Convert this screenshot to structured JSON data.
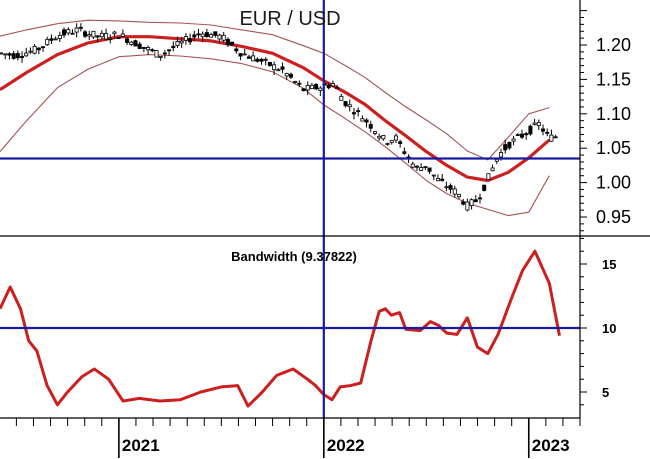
{
  "chart_data": [
    {
      "type": "candlestick",
      "title": "EUR / USD",
      "y_axis": {
        "ticks": [
          "1.20",
          "1.15",
          "1.10",
          "1.05",
          "1.00",
          "0.95"
        ],
        "range": [
          0.93,
          1.26
        ]
      },
      "x_axis": {
        "labels": [
          "2021",
          "2022",
          "2023"
        ],
        "range": [
          2020.42,
          2023.25
        ]
      },
      "reference_lines": {
        "horizontal": 1.035,
        "vertical_x": 2022.0
      },
      "series": [
        {
          "name": "",
          "kind": "moving-average",
          "points": [
            [
              2020.42,
              1.135
            ],
            [
              2020.55,
              1.16
            ],
            [
              2020.7,
              1.186
            ],
            [
              2020.85,
              1.203
            ],
            [
              2021.0,
              1.212
            ],
            [
              2021.15,
              1.212
            ],
            [
              2021.3,
              1.209
            ],
            [
              2021.45,
              1.206
            ],
            [
              2021.6,
              1.198
            ],
            [
              2021.75,
              1.188
            ],
            [
              2021.9,
              1.167
            ],
            [
              2022.0,
              1.148
            ],
            [
              2022.1,
              1.132
            ],
            [
              2022.2,
              1.114
            ],
            [
              2022.3,
              1.09
            ],
            [
              2022.4,
              1.068
            ],
            [
              2022.5,
              1.045
            ],
            [
              2022.6,
              1.025
            ],
            [
              2022.7,
              1.008
            ],
            [
              2022.8,
              1.003
            ],
            [
              2022.9,
              1.015
            ],
            [
              2023.0,
              1.036
            ],
            [
              2023.1,
              1.062
            ]
          ]
        },
        {
          "name": "",
          "kind": "upper-band",
          "points": [
            [
              2020.42,
              1.213
            ],
            [
              2020.55,
              1.222
            ],
            [
              2020.7,
              1.231
            ],
            [
              2020.85,
              1.236
            ],
            [
              2021.0,
              1.235
            ],
            [
              2021.15,
              1.233
            ],
            [
              2021.3,
              1.232
            ],
            [
              2021.45,
              1.229
            ],
            [
              2021.6,
              1.222
            ],
            [
              2021.75,
              1.215
            ],
            [
              2021.9,
              1.199
            ],
            [
              2022.0,
              1.188
            ],
            [
              2022.1,
              1.171
            ],
            [
              2022.2,
              1.153
            ],
            [
              2022.3,
              1.131
            ],
            [
              2022.4,
              1.11
            ],
            [
              2022.5,
              1.091
            ],
            [
              2022.6,
              1.071
            ],
            [
              2022.7,
              1.046
            ],
            [
              2022.8,
              1.033
            ],
            [
              2022.9,
              1.066
            ],
            [
              2023.0,
              1.1
            ],
            [
              2023.1,
              1.109
            ]
          ]
        },
        {
          "name": "",
          "kind": "lower-band",
          "points": [
            [
              2020.42,
              1.045
            ],
            [
              2020.55,
              1.09
            ],
            [
              2020.7,
              1.138
            ],
            [
              2020.85,
              1.165
            ],
            [
              2021.0,
              1.183
            ],
            [
              2021.15,
              1.186
            ],
            [
              2021.3,
              1.184
            ],
            [
              2021.45,
              1.18
            ],
            [
              2021.6,
              1.173
            ],
            [
              2021.75,
              1.161
            ],
            [
              2021.9,
              1.137
            ],
            [
              2022.0,
              1.113
            ],
            [
              2022.1,
              1.094
            ],
            [
              2022.2,
              1.074
            ],
            [
              2022.3,
              1.052
            ],
            [
              2022.4,
              1.028
            ],
            [
              2022.5,
              1.003
            ],
            [
              2022.6,
              0.984
            ],
            [
              2022.7,
              0.97
            ],
            [
              2022.8,
              0.961
            ],
            [
              2022.9,
              0.952
            ],
            [
              2023.0,
              0.957
            ],
            [
              2023.1,
              1.01
            ]
          ]
        },
        {
          "name": "",
          "kind": "price",
          "points": [
            [
              2020.42,
              1.188
            ],
            [
              2020.5,
              1.185
            ],
            [
              2020.6,
              1.193
            ],
            [
              2020.7,
              1.214
            ],
            [
              2020.8,
              1.222
            ],
            [
              2020.9,
              1.212
            ],
            [
              2021.0,
              1.215
            ],
            [
              2021.1,
              1.2
            ],
            [
              2021.2,
              1.185
            ],
            [
              2021.3,
              1.202
            ],
            [
              2021.4,
              1.218
            ],
            [
              2021.5,
              1.212
            ],
            [
              2021.6,
              1.188
            ],
            [
              2021.7,
              1.176
            ],
            [
              2021.8,
              1.163
            ],
            [
              2021.9,
              1.135
            ],
            [
              2022.0,
              1.14
            ],
            [
              2022.05,
              1.144
            ],
            [
              2022.1,
              1.118
            ],
            [
              2022.15,
              1.105
            ],
            [
              2022.2,
              1.092
            ],
            [
              2022.25,
              1.077
            ],
            [
              2022.3,
              1.06
            ],
            [
              2022.35,
              1.065
            ],
            [
              2022.4,
              1.042
            ],
            [
              2022.45,
              1.02
            ],
            [
              2022.5,
              1.025
            ],
            [
              2022.55,
              1.005
            ],
            [
              2022.6,
              0.995
            ],
            [
              2022.65,
              0.985
            ],
            [
              2022.7,
              0.966
            ],
            [
              2022.75,
              0.975
            ],
            [
              2022.8,
              1.005
            ],
            [
              2022.85,
              1.038
            ],
            [
              2022.9,
              1.055
            ],
            [
              2022.95,
              1.065
            ],
            [
              2023.0,
              1.075
            ],
            [
              2023.05,
              1.085
            ],
            [
              2023.1,
              1.065
            ],
            [
              2023.15,
              1.068
            ]
          ]
        }
      ]
    },
    {
      "type": "line",
      "title": "Bandwidth (9.37822)",
      "y_axis": {
        "ticks": [
          "15",
          "10",
          "5"
        ],
        "range": [
          2,
          17.5
        ]
      },
      "x_axis": {
        "labels": [
          "2021",
          "2022",
          "2023"
        ],
        "range": [
          2020.42,
          2023.25
        ]
      },
      "reference_lines": {
        "horizontal": 10,
        "vertical_x": 2022.0
      },
      "series": [
        {
          "name": "",
          "kind": "bandwidth",
          "points": [
            [
              2020.42,
              11.5
            ],
            [
              2020.47,
              13.2
            ],
            [
              2020.52,
              11.5
            ],
            [
              2020.56,
              9.0
            ],
            [
              2020.6,
              8.2
            ],
            [
              2020.65,
              5.5
            ],
            [
              2020.7,
              4.0
            ],
            [
              2020.75,
              5.0
            ],
            [
              2020.82,
              6.2
            ],
            [
              2020.88,
              6.8
            ],
            [
              2020.95,
              6.0
            ],
            [
              2021.02,
              4.3
            ],
            [
              2021.1,
              4.5
            ],
            [
              2021.2,
              4.3
            ],
            [
              2021.3,
              4.4
            ],
            [
              2021.4,
              5.0
            ],
            [
              2021.5,
              5.4
            ],
            [
              2021.58,
              5.5
            ],
            [
              2021.63,
              3.9
            ],
            [
              2021.7,
              5.0
            ],
            [
              2021.77,
              6.3
            ],
            [
              2021.85,
              6.8
            ],
            [
              2021.92,
              6.0
            ],
            [
              2021.96,
              5.5
            ],
            [
              2022.0,
              4.8
            ],
            [
              2022.04,
              4.4
            ],
            [
              2022.08,
              5.4
            ],
            [
              2022.13,
              5.5
            ],
            [
              2022.18,
              5.7
            ],
            [
              2022.23,
              9.0
            ],
            [
              2022.27,
              11.3
            ],
            [
              2022.3,
              11.5
            ],
            [
              2022.33,
              11.0
            ],
            [
              2022.37,
              11.2
            ],
            [
              2022.4,
              9.9
            ],
            [
              2022.47,
              9.8
            ],
            [
              2022.52,
              10.5
            ],
            [
              2022.56,
              10.2
            ],
            [
              2022.6,
              9.6
            ],
            [
              2022.65,
              9.5
            ],
            [
              2022.7,
              10.8
            ],
            [
              2022.75,
              8.5
            ],
            [
              2022.8,
              8.0
            ],
            [
              2022.85,
              9.5
            ],
            [
              2022.92,
              12.5
            ],
            [
              2022.97,
              14.5
            ],
            [
              2023.03,
              16.0
            ],
            [
              2023.1,
              13.5
            ],
            [
              2023.15,
              9.4
            ]
          ]
        }
      ]
    }
  ]
}
